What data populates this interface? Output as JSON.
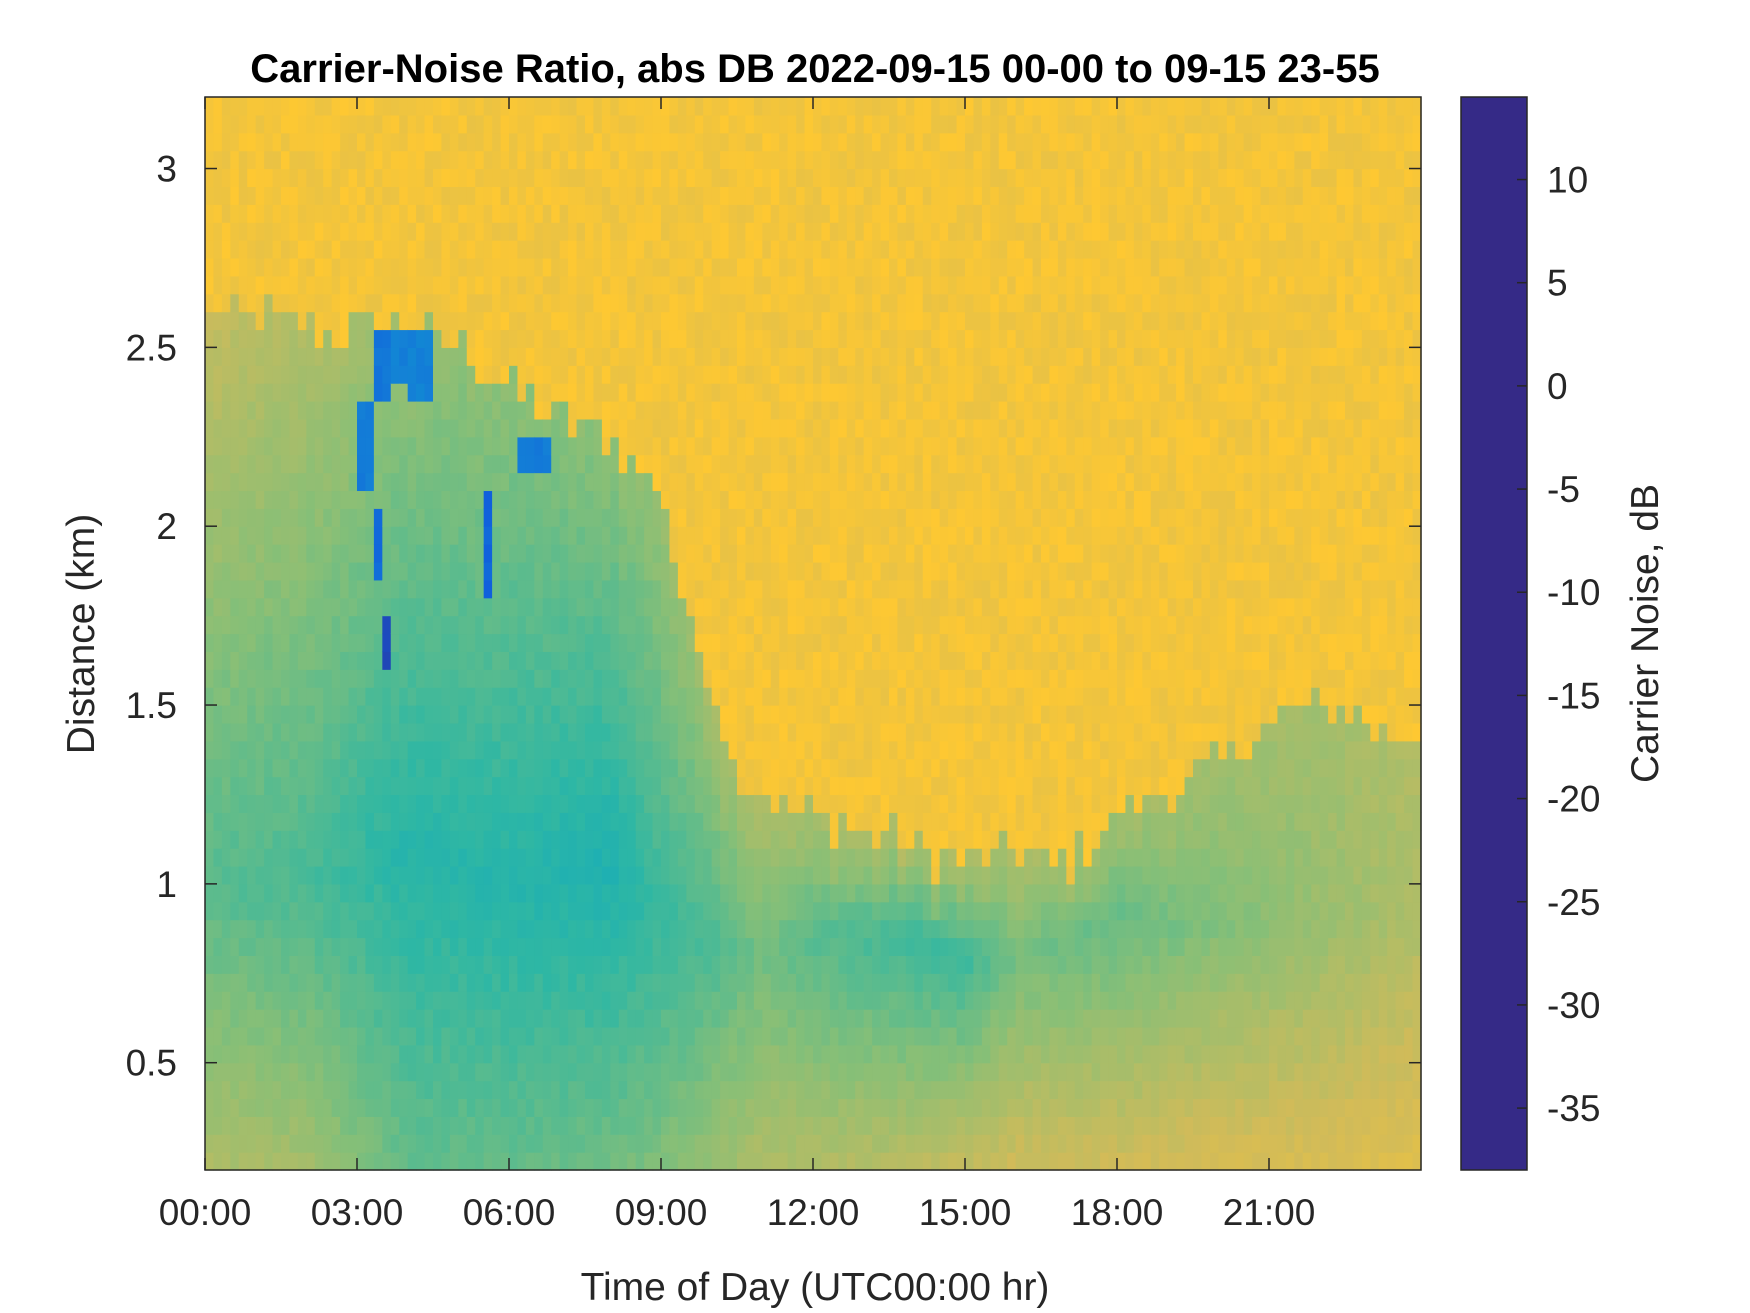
{
  "chart_data": {
    "type": "heatmap",
    "title": "Carrier-Noise Ratio, abs DB 2022-09-15 00-00 to 09-15 23-55",
    "xlabel": "Time of Day (UTC00:00 hr)",
    "ylabel": "Distance (km)",
    "colorbar_label": "Carrier Noise, dB",
    "xlim": [
      0,
      24
    ],
    "ylim": [
      0.2,
      3.2
    ],
    "clim": [
      -38,
      14
    ],
    "x_ticks": [
      {
        "value": 0,
        "label": "00:00"
      },
      {
        "value": 3,
        "label": "03:00"
      },
      {
        "value": 6,
        "label": "06:00"
      },
      {
        "value": 9,
        "label": "09:00"
      },
      {
        "value": 12,
        "label": "12:00"
      },
      {
        "value": 15,
        "label": "15:00"
      },
      {
        "value": 18,
        "label": "18:00"
      },
      {
        "value": 21,
        "label": "21:00"
      }
    ],
    "y_ticks": [
      {
        "value": 0.5,
        "label": "0.5"
      },
      {
        "value": 1,
        "label": "1"
      },
      {
        "value": 1.5,
        "label": "1.5"
      },
      {
        "value": 2,
        "label": "2"
      },
      {
        "value": 2.5,
        "label": "2.5"
      },
      {
        "value": 3,
        "label": "3"
      }
    ],
    "colorbar_ticks": [
      {
        "value": 10,
        "label": "10"
      },
      {
        "value": 5,
        "label": "5"
      },
      {
        "value": 0,
        "label": "0"
      },
      {
        "value": -5,
        "label": "-5"
      },
      {
        "value": -10,
        "label": "-10"
      },
      {
        "value": -15,
        "label": "-15"
      },
      {
        "value": -20,
        "label": "-20"
      },
      {
        "value": -25,
        "label": "-25"
      },
      {
        "value": -30,
        "label": "-30"
      },
      {
        "value": -35,
        "label": "-35"
      }
    ],
    "colormap": "parula",
    "colormap_stops": [
      "#352a87",
      "#0f5cdd",
      "#1481d6",
      "#06a4ca",
      "#2eb7a4",
      "#87bf77",
      "#d1bb59",
      "#fec832",
      "#f9fb0e"
    ],
    "background_level_db": -30,
    "boundary_height_km": {
      "x": [
        0,
        1,
        2,
        3,
        4,
        5,
        6,
        7,
        8,
        9,
        9.5,
        10,
        10.5,
        11,
        12,
        13,
        14,
        15,
        16,
        17,
        18,
        19,
        20,
        21,
        22,
        23,
        24
      ],
      "y": [
        2.6,
        2.6,
        2.55,
        2.55,
        2.55,
        2.5,
        2.4,
        2.3,
        2.25,
        2.1,
        1.75,
        1.55,
        1.3,
        1.25,
        1.2,
        1.15,
        1.1,
        1.05,
        1.1,
        1.05,
        1.2,
        1.25,
        1.35,
        1.45,
        1.5,
        1.45,
        1.4
      ]
    },
    "profile_db": {
      "x": [
        0,
        2,
        4,
        6,
        8,
        9,
        10,
        11,
        12,
        14,
        15,
        16,
        18,
        20,
        22,
        24
      ],
      "core_db": [
        -15,
        -14,
        -11,
        -11,
        -10,
        -13,
        -14,
        -17,
        -15,
        -13,
        -13,
        -17,
        -16,
        -18,
        -20,
        -22
      ],
      "core_height_km": [
        1.0,
        1.0,
        1.1,
        1.0,
        1.05,
        0.9,
        0.85,
        0.8,
        0.85,
        0.85,
        0.8,
        0.8,
        0.9,
        0.9,
        0.9,
        0.9
      ],
      "surface_db": [
        -22,
        -21,
        -16,
        -16,
        -17,
        -18,
        -20,
        -22,
        -22,
        -23,
        -24,
        -25,
        -25,
        -26,
        -26,
        -27
      ],
      "top_db": [
        -24,
        -22,
        -20,
        -19,
        -19,
        -20,
        -21,
        -22,
        -22,
        -22,
        -22,
        -22,
        -21,
        -21,
        -21,
        -22
      ]
    },
    "high_snr_patches": [
      {
        "x": [
          3.0,
          3.3
        ],
        "y": [
          2.1,
          2.35
        ],
        "db": 2
      },
      {
        "x": [
          3.3,
          3.6
        ],
        "y": [
          2.35,
          2.55
        ],
        "db": 3
      },
      {
        "x": [
          3.6,
          4.0
        ],
        "y": [
          2.4,
          2.55
        ],
        "db": 1
      },
      {
        "x": [
          4.0,
          4.5
        ],
        "y": [
          2.35,
          2.55
        ],
        "db": 1
      },
      {
        "x": [
          3.35,
          3.55
        ],
        "y": [
          1.85,
          2.05
        ],
        "db": 5
      },
      {
        "x": [
          3.5,
          3.7
        ],
        "y": [
          1.6,
          1.75
        ],
        "db": 10
      },
      {
        "x": [
          5.5,
          5.65
        ],
        "y": [
          1.8,
          2.1
        ],
        "db": 6
      },
      {
        "x": [
          6.2,
          6.9
        ],
        "y": [
          2.15,
          2.25
        ],
        "db": 2
      }
    ]
  }
}
